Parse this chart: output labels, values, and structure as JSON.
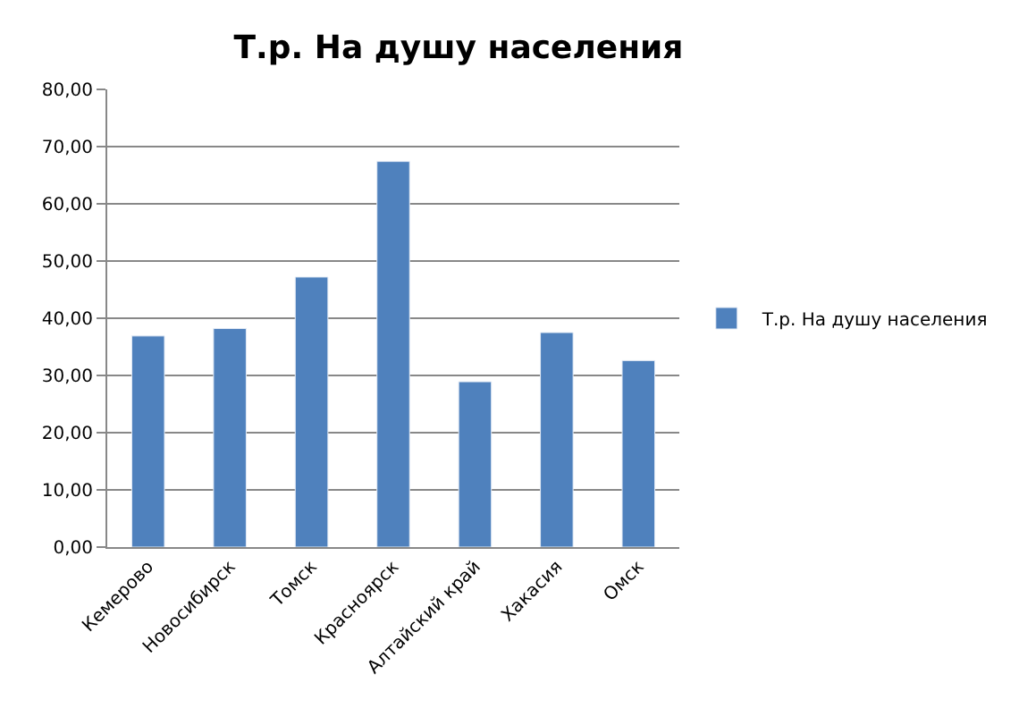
{
  "chart_data": {
    "type": "bar",
    "title": "Т.р. На душу населения",
    "categories": [
      "Кемерово",
      "Новосибирск",
      "Томск",
      "Красноярск",
      "Алтайский край",
      "Хакасия",
      "Омск"
    ],
    "series": [
      {
        "name": "Т.р. На душу населения",
        "color": "#4f81bd",
        "values": [
          36.9,
          38.2,
          47.2,
          67.4,
          28.9,
          37.5,
          32.6
        ]
      }
    ],
    "ylim": [
      0,
      80
    ],
    "yticks": [
      {
        "value": 0,
        "label": "0,00"
      },
      {
        "value": 10,
        "label": "10,00"
      },
      {
        "value": 20,
        "label": "20,00"
      },
      {
        "value": 30,
        "label": "30,00"
      },
      {
        "value": 40,
        "label": "40,00"
      },
      {
        "value": 50,
        "label": "50,00"
      },
      {
        "value": 60,
        "label": "60,00"
      },
      {
        "value": 70,
        "label": "70,00"
      },
      {
        "value": 80,
        "label": "80,00"
      }
    ],
    "grid": "y",
    "legend": "right"
  }
}
